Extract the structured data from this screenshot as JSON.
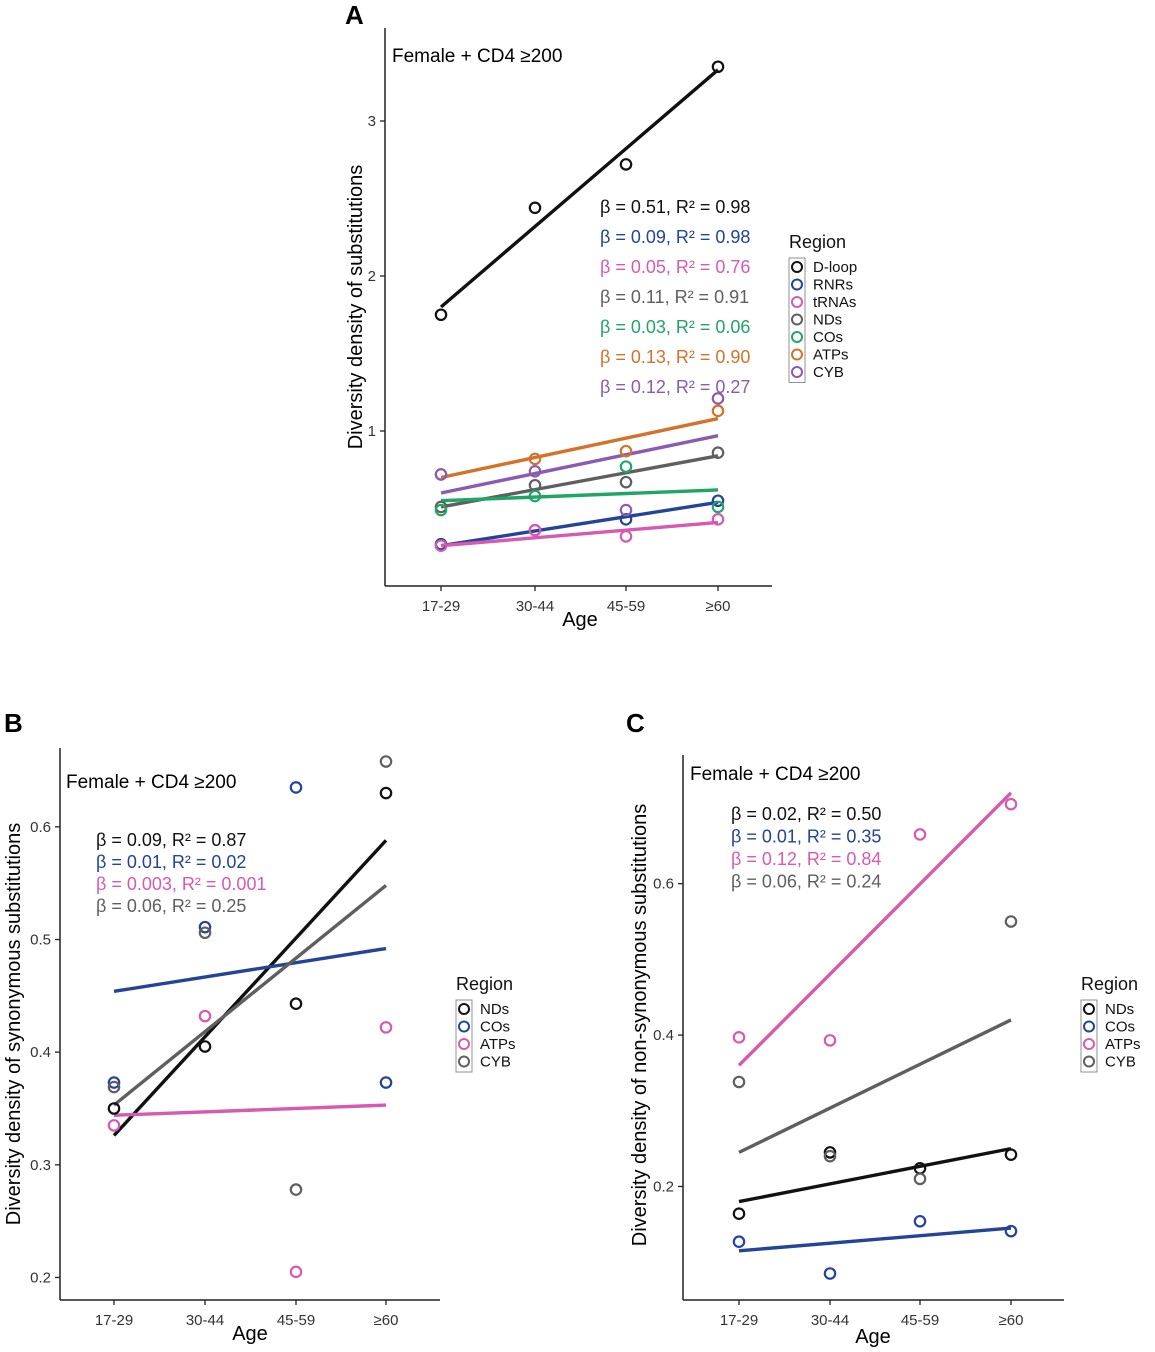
{
  "colors": {
    "black": "#111111",
    "blue": "#24439a",
    "pink": "#d75ab2",
    "gray": "#5f5f5f",
    "green": "#21a567",
    "red": "#d93826",
    "orange": "#d5722a",
    "purple": "#8a5bb5"
  },
  "chart_data": [
    {
      "type": "scatter",
      "panel": "A",
      "title": "Female + CD4 ≥200",
      "xlabel": "Age",
      "ylabel": "Diversity density of substitutions",
      "categories": [
        "17-29",
        "30-44",
        "45-59",
        "≥60"
      ],
      "ylim": [
        0.0,
        3.6
      ],
      "yticks": [
        1,
        2,
        3
      ],
      "legend": {
        "title": "Region",
        "placement": "right"
      },
      "series": [
        {
          "name": "D-loop",
          "color": "#111111",
          "values": [
            1.75,
            2.44,
            2.72,
            3.35
          ],
          "fit": [
            1.8,
            3.33
          ],
          "annotation": "β = 0.51, R² = 0.98"
        },
        {
          "name": "RNRs",
          "color": "#24439a",
          "values": [
            0.27,
            0.36,
            0.43,
            0.55
          ],
          "fit": [
            0.26,
            0.54
          ],
          "annotation": "β = 0.09, R² = 0.98"
        },
        {
          "name": "tRNAs",
          "color": "#d75ab2",
          "values": [
            0.26,
            0.36,
            0.32,
            0.43
          ],
          "fit": [
            0.26,
            0.41
          ],
          "annotation": "β = 0.05, R² = 0.76"
        },
        {
          "name": "NDs",
          "color": "#5f5f5f",
          "values": [
            0.51,
            0.65,
            0.67,
            0.86
          ],
          "fit": [
            0.51,
            0.84
          ],
          "annotation": "β = 0.11, R² = 0.91"
        },
        {
          "name": "COs",
          "color": "#21a567",
          "values": [
            0.49,
            0.58,
            0.77,
            0.51
          ],
          "fit": [
            0.55,
            0.62
          ],
          "annotation": "β = 0.03, R² = 0.06"
        },
        {
          "name": "ATPs",
          "color": "#d5722a",
          "values": [
            0.72,
            0.82,
            0.87,
            1.13
          ],
          "fit": [
            0.7,
            1.08
          ],
          "annotation": "β = 0.13, R² = 0.90"
        },
        {
          "name": "CYB",
          "color": "#8a5bb5",
          "values": [
            0.72,
            0.74,
            0.49,
            1.21
          ],
          "fit": [
            0.6,
            0.97
          ],
          "annotation": "β = 0.12, R² = 0.27"
        }
      ]
    },
    {
      "type": "scatter",
      "panel": "B",
      "title": "Female + CD4 ≥200",
      "xlabel": "Age",
      "ylabel": "Diversity density of synonymous substitutions",
      "categories": [
        "17-29",
        "30-44",
        "45-59",
        "≥60"
      ],
      "ylim": [
        0.18,
        0.67
      ],
      "yticks": [
        0.2,
        0.3,
        0.4,
        0.5,
        0.6
      ],
      "legend": {
        "title": "Region",
        "placement": "right"
      },
      "series": [
        {
          "name": "NDs",
          "color": "#111111",
          "values": [
            0.35,
            0.405,
            0.443,
            0.63
          ],
          "fit": [
            0.326,
            0.588
          ],
          "annotation": "β = 0.09,  R² = 0.87"
        },
        {
          "name": "COs",
          "color": "#24439a",
          "values": [
            0.373,
            0.511,
            0.635,
            0.373
          ],
          "fit": [
            0.454,
            0.492
          ],
          "annotation": "β = 0.01,  R² = 0.02"
        },
        {
          "name": "ATPs",
          "color": "#d75ab2",
          "values": [
            0.335,
            0.432,
            0.205,
            0.422
          ],
          "fit": [
            0.344,
            0.353
          ],
          "annotation": "β = 0.003, R² = 0.001"
        },
        {
          "name": "CYB",
          "color": "#5f5f5f",
          "values": [
            0.369,
            0.506,
            0.278,
            0.658
          ],
          "fit": [
            0.353,
            0.548
          ],
          "annotation": "β = 0.06,  R² = 0.25"
        }
      ]
    },
    {
      "type": "scatter",
      "panel": "C",
      "title": "Female + CD4 ≥200",
      "xlabel": "Age",
      "ylabel": "Diversity density of non-synonymous substitutions",
      "categories": [
        "17-29",
        "30-44",
        "45-59",
        "≥60"
      ],
      "ylim": [
        0.05,
        0.77
      ],
      "yticks": [
        0.2,
        0.4,
        0.6
      ],
      "legend": {
        "title": "Region",
        "placement": "right"
      },
      "series": [
        {
          "name": "NDs",
          "color": "#111111",
          "values": [
            0.164,
            0.245,
            0.224,
            0.242
          ],
          "fit": [
            0.18,
            0.25
          ],
          "annotation": "β = 0.02, R² = 0.50"
        },
        {
          "name": "COs",
          "color": "#24439a",
          "values": [
            0.127,
            0.085,
            0.154,
            0.141
          ],
          "fit": [
            0.115,
            0.145
          ],
          "annotation": "β = 0.01, R² = 0.35"
        },
        {
          "name": "ATPs",
          "color": "#d75ab2",
          "values": [
            0.397,
            0.393,
            0.665,
            0.705
          ],
          "fit": [
            0.36,
            0.72
          ],
          "annotation": "β = 0.12, R² = 0.84"
        },
        {
          "name": "CYB",
          "color": "#5f5f5f",
          "values": [
            0.338,
            0.24,
            0.21,
            0.55
          ],
          "fit": [
            0.245,
            0.42
          ],
          "annotation": "β = 0.06, R² = 0.24"
        }
      ]
    }
  ],
  "panel_labels": [
    "A",
    "B",
    "C"
  ]
}
